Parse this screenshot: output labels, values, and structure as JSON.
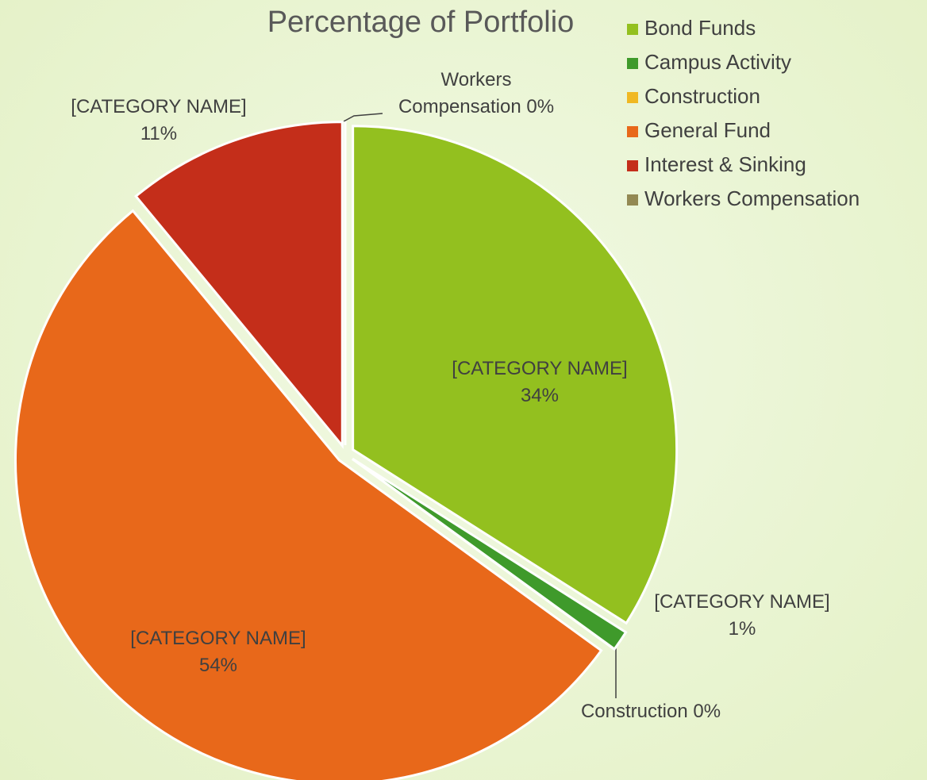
{
  "chart_data": {
    "type": "pie",
    "title": "Percentage of Portfolio",
    "categories": [
      "Bond Funds",
      "Campus Activity",
      "Construction",
      "General Fund",
      "Interest & Sinking",
      "Workers Compensation"
    ],
    "values": [
      34,
      1,
      0,
      54,
      11,
      0
    ],
    "value_labels": [
      "34%",
      "1%",
      "0%",
      "54%",
      "11%",
      "0%"
    ],
    "label_names": [
      "[CATEGORY NAME]",
      "[CATEGORY NAME]",
      "Construction",
      "[CATEGORY NAME]",
      "[CATEGORY NAME]",
      "Workers Compensation"
    ],
    "colors": [
      "#93c01f",
      "#3f9a2b",
      "#f0b823",
      "#e8681a",
      "#c42e1a",
      "#938953"
    ],
    "legend": "top-right"
  }
}
